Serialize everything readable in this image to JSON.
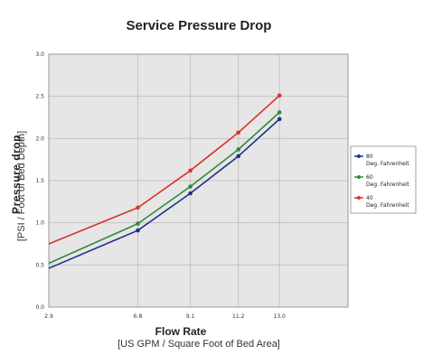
{
  "chart_data": {
    "type": "line",
    "title": "Service Pressure Drop",
    "xlabel": "Flow Rate",
    "xlabel_sub": "[US GPM / Square Foot of Bed Area]",
    "ylabel": "Pressure drop",
    "ylabel_sub": "[PSI / Foot of Bed Depth]",
    "x_ticks": [
      "2.9",
      "6.8",
      "9.1",
      "11.2",
      "13.0"
    ],
    "y_ticks": [
      "0.0",
      "0.5",
      "1.0",
      "1.5",
      "2.0",
      "2.5",
      "3.0"
    ],
    "xlim": [
      2.9,
      16.0
    ],
    "ylim": [
      0.0,
      3.0
    ],
    "grid": true,
    "legend_position": "right",
    "series": [
      {
        "name": "80 Deg. Fahrenheit",
        "legend_lines": [
          "80",
          "Deg. Fahrenheit"
        ],
        "color": "#1f2f8a",
        "x": [
          2.9,
          6.8,
          9.1,
          11.2,
          13.0
        ],
        "y": [
          0.46,
          0.91,
          1.35,
          1.79,
          2.23
        ]
      },
      {
        "name": "60 Deg. Fahrenheit",
        "legend_lines": [
          "60",
          "Deg. Fahrenheit"
        ],
        "color": "#2e8b3a",
        "x": [
          2.9,
          6.8,
          9.1,
          11.2,
          13.0
        ],
        "y": [
          0.52,
          0.99,
          1.43,
          1.87,
          2.31
        ]
      },
      {
        "name": "40 Deg. Fahrenheit",
        "legend_lines": [
          "40",
          "Deg. Fahrenheit"
        ],
        "color": "#d9342b",
        "x": [
          2.9,
          6.8,
          9.1,
          11.2,
          13.0
        ],
        "y": [
          0.75,
          1.18,
          1.62,
          2.07,
          2.51
        ]
      }
    ]
  }
}
